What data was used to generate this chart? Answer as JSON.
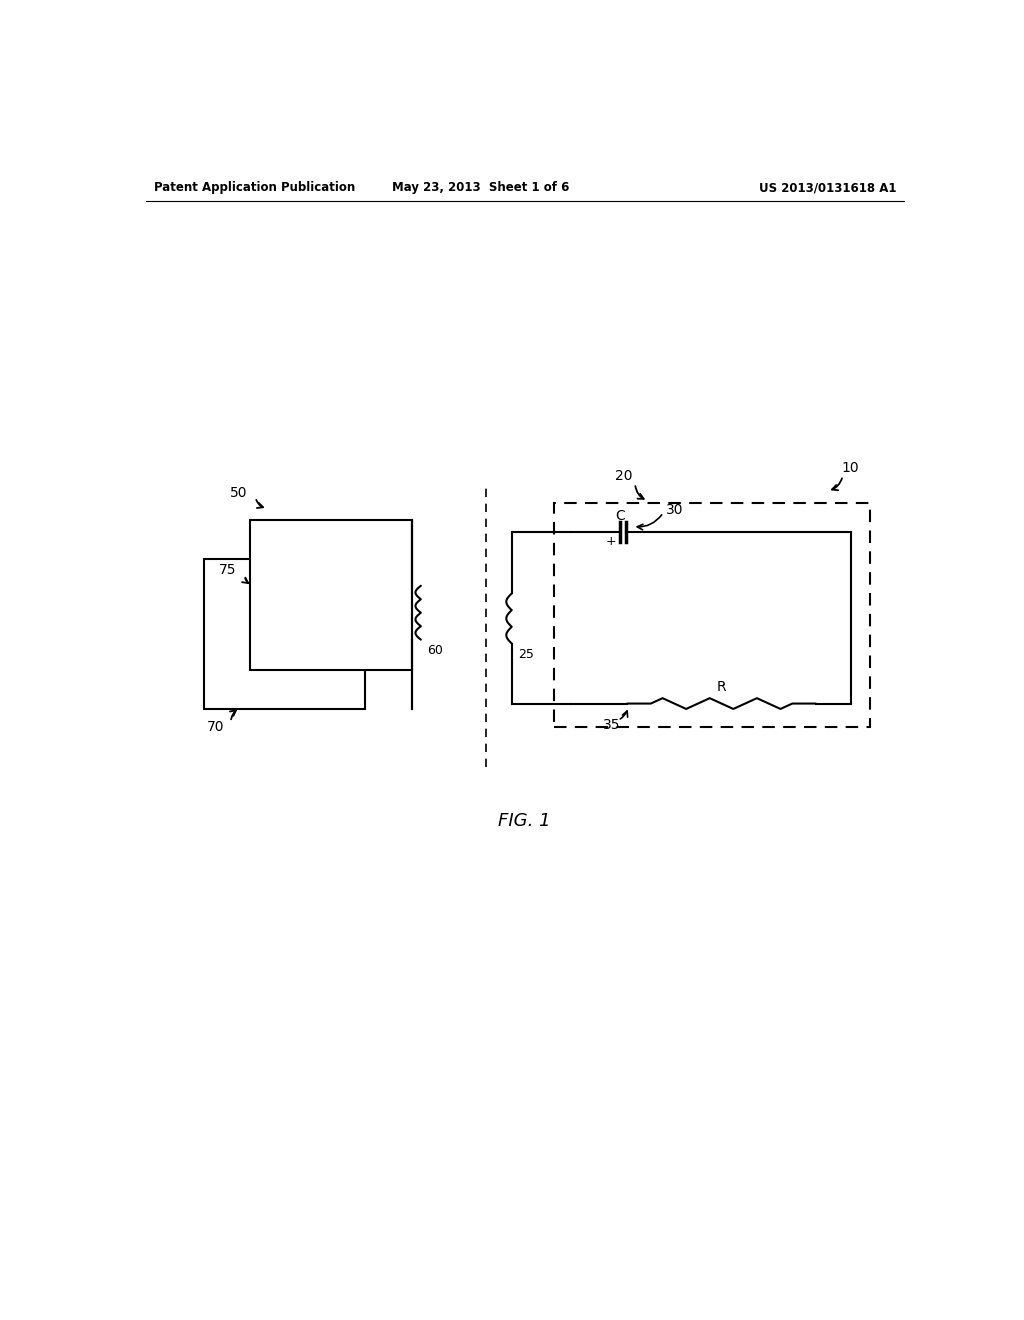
{
  "bg_color": "#ffffff",
  "header_left": "Patent Application Publication",
  "header_mid": "May 23, 2013  Sheet 1 of 6",
  "header_right": "US 2013/0131618 A1",
  "fig_label": "FIG. 1",
  "label_10": "10",
  "label_20": "20",
  "label_25": "25",
  "label_30": "30",
  "label_35": "35",
  "label_50": "50",
  "label_60": "60",
  "label_70": "70",
  "label_75": "75",
  "label_C": "C",
  "label_R": "R",
  "label_plus": "+",
  "page_width": 10.24,
  "page_height": 13.2
}
